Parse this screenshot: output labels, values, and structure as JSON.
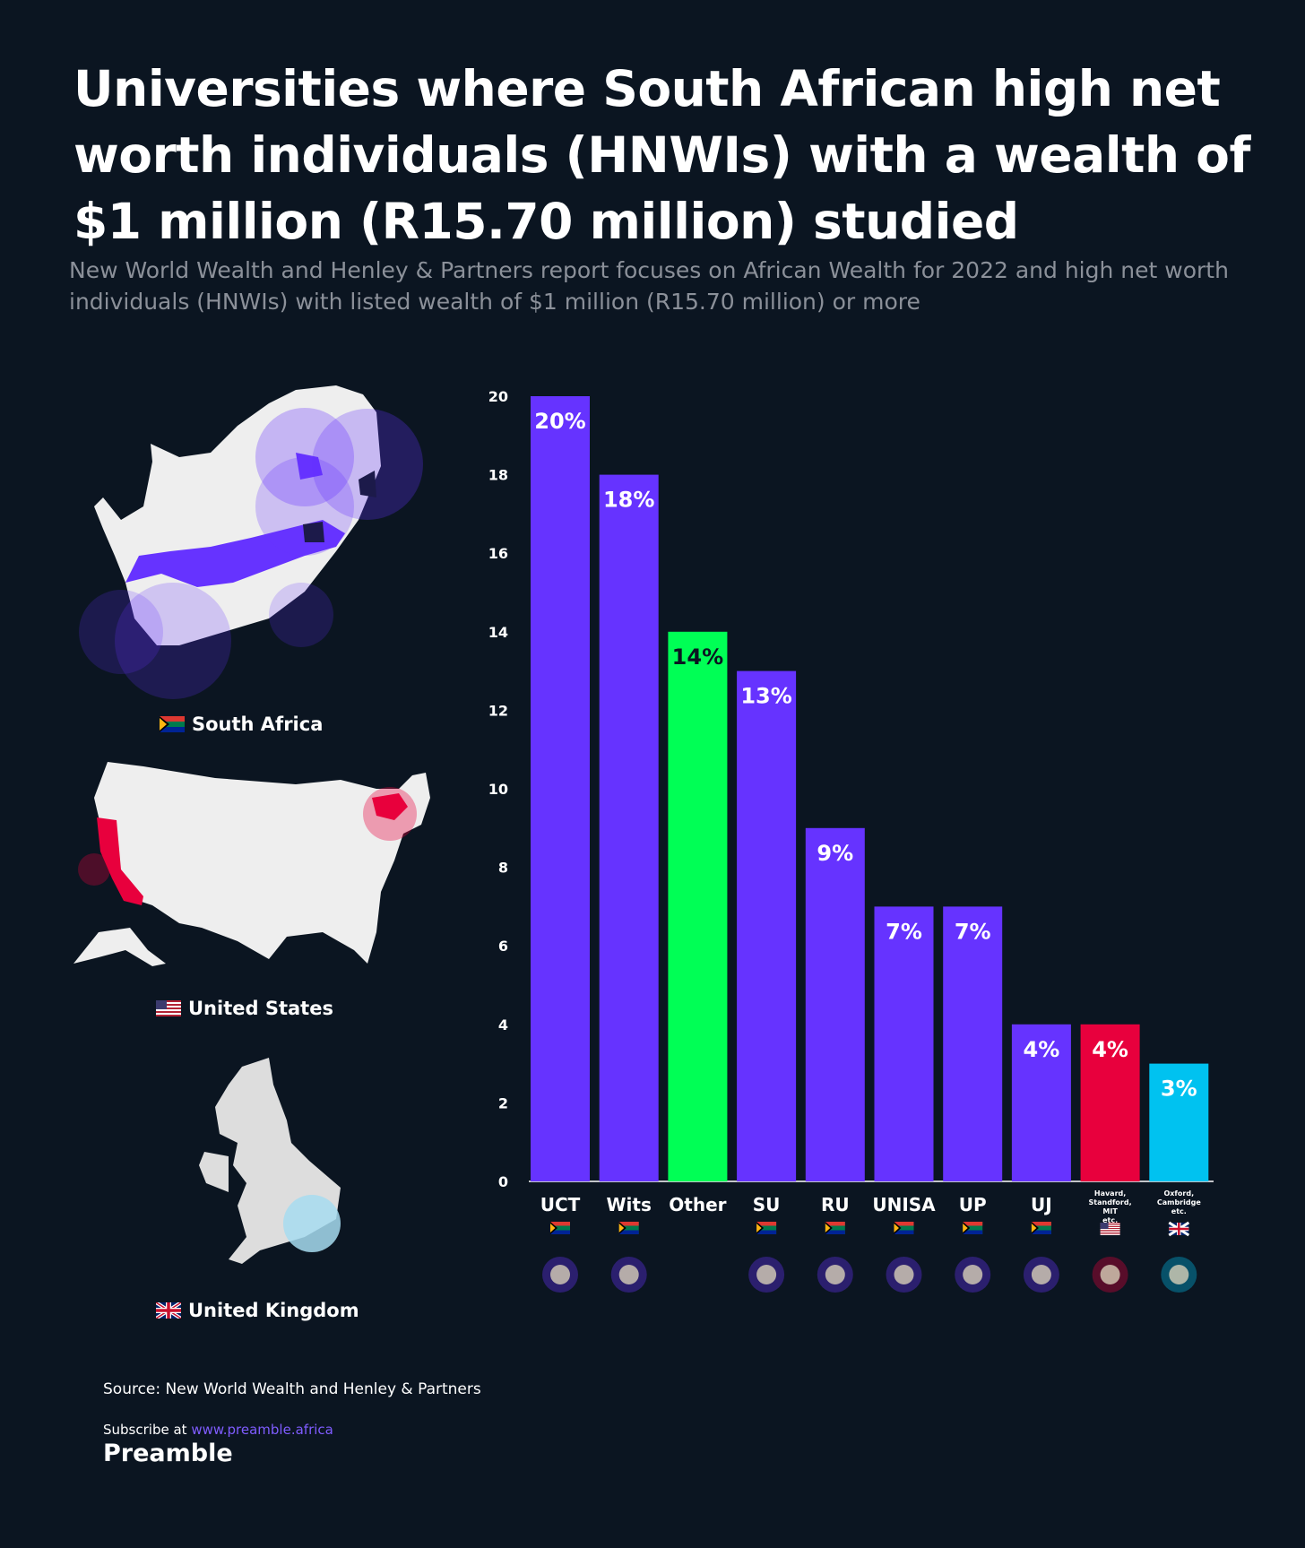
{
  "header": {
    "title": "Universities where South African high net worth individuals (HNWIs) with a wealth of $1 million (R15.70 million) studied",
    "subtitle": "New World Wealth and Henley & Partners report focuses on African Wealth for 2022 and high net worth individuals (HNWIs) with listed wealth of $1 million (R15.70 million) or more"
  },
  "maps": [
    {
      "label": "South Africa",
      "flag": "za-flag-icon"
    },
    {
      "label": "United States",
      "flag": "us-flag-icon"
    },
    {
      "label": "United Kingdom",
      "flag": "uk-flag-icon"
    }
  ],
  "colors": {
    "sa": "#6633ff",
    "other": "#00ff55",
    "us": "#e8003d",
    "uk": "#00c2f0",
    "background": "#0b1521"
  },
  "chart_data": {
    "type": "bar",
    "yticks": [
      0,
      2,
      4,
      6,
      8,
      10,
      12,
      14,
      16,
      18,
      20
    ],
    "ylim": [
      0,
      20
    ],
    "categories": [
      "UCT",
      "Wits",
      "Other",
      "SU",
      "RU",
      "UNISA",
      "UP",
      "UJ",
      "Havard, Standford, MIT etc.",
      "Oxford, Cambridge etc."
    ],
    "values": [
      20,
      18,
      14,
      13,
      9,
      7,
      7,
      4,
      4,
      3
    ],
    "labels": [
      "20%",
      "18%",
      "14%",
      "13%",
      "9%",
      "7%",
      "7%",
      "4%",
      "4%",
      "3%"
    ],
    "bar_colors": [
      "#6633ff",
      "#6633ff",
      "#00ff55",
      "#6633ff",
      "#6633ff",
      "#6633ff",
      "#6633ff",
      "#6633ff",
      "#e8003d",
      "#00c2f0"
    ],
    "label_colors": [
      "#ffffff",
      "#ffffff",
      "#0b1521",
      "#ffffff",
      "#ffffff",
      "#ffffff",
      "#ffffff",
      "#ffffff",
      "#ffffff",
      "#ffffff"
    ],
    "flags": [
      "za",
      "za",
      "",
      "za",
      "za",
      "za",
      "za",
      "za",
      "us",
      "uk"
    ],
    "small_label": [
      false,
      false,
      false,
      false,
      false,
      false,
      false,
      false,
      true,
      true
    ]
  },
  "footer": {
    "source": "Source: New World Wealth and Henley & Partners",
    "subscribe_prefix": "Subscribe at",
    "subscribe_url": "www.preamble.africa",
    "brand": "Preamble"
  }
}
